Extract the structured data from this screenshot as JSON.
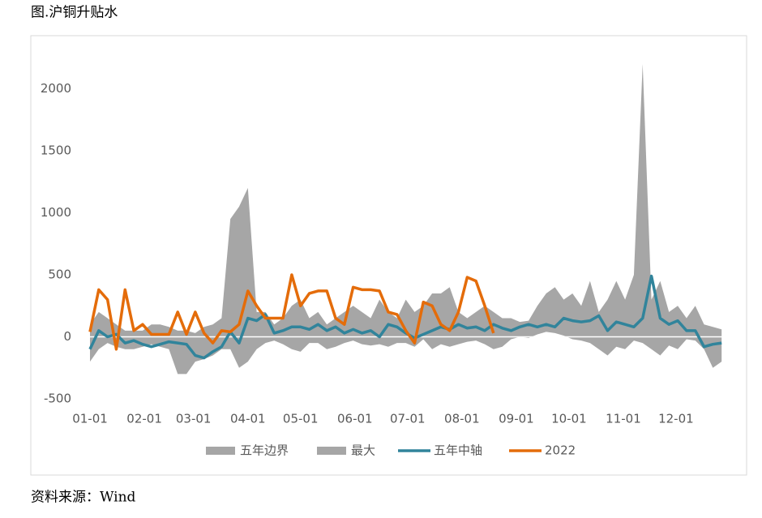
{
  "chart_data": {
    "type": "band-line",
    "title": "图.沪铜升贴水",
    "source": "资料来源：Wind",
    "x": [
      0,
      5,
      10,
      15,
      20,
      25,
      30,
      35,
      40,
      45,
      50,
      55,
      60,
      65,
      70,
      75,
      80,
      85,
      90,
      95,
      100,
      105,
      110,
      115,
      120,
      125,
      130,
      135,
      140,
      145,
      150,
      155,
      160,
      165,
      170,
      175,
      180,
      185,
      190,
      195,
      200,
      205,
      210,
      215,
      220,
      225,
      230,
      235,
      240,
      245,
      250,
      255,
      260,
      265,
      270,
      275,
      280,
      285,
      290,
      295,
      300,
      305,
      310,
      315,
      320,
      325,
      330,
      335,
      340,
      345,
      350,
      355,
      360
    ],
    "xlim": [
      0,
      365
    ],
    "xticks": [
      {
        "value": 0,
        "label": "01-01"
      },
      {
        "value": 31,
        "label": "02-01"
      },
      {
        "value": 59,
        "label": "03-01"
      },
      {
        "value": 90,
        "label": "04-01"
      },
      {
        "value": 120,
        "label": "05-01"
      },
      {
        "value": 151,
        "label": "06-01"
      },
      {
        "value": 181,
        "label": "07-01"
      },
      {
        "value": 212,
        "label": "08-01"
      },
      {
        "value": 243,
        "label": "09-01"
      },
      {
        "value": 273,
        "label": "10-01"
      },
      {
        "value": 304,
        "label": "11-01"
      },
      {
        "value": 334,
        "label": "12-01"
      }
    ],
    "ylim": [
      -500,
      2200
    ],
    "yticks": [
      -500,
      0,
      500,
      1000,
      1500,
      2000
    ],
    "series": [
      {
        "name": "五年边界",
        "color": "#a6a6a6",
        "values": [
          -200,
          -100,
          -50,
          -80,
          -100,
          -100,
          -80,
          -60,
          -80,
          -100,
          -300,
          -300,
          -200,
          -180,
          -150,
          -100,
          -100,
          -250,
          -200,
          -100,
          -50,
          -30,
          -60,
          -100,
          -120,
          -50,
          -50,
          -100,
          -80,
          -50,
          -30,
          -60,
          -70,
          -60,
          -80,
          -50,
          -50,
          -80,
          -20,
          -100,
          -60,
          -80,
          -60,
          -40,
          -30,
          -60,
          -100,
          -80,
          -20,
          0,
          -10,
          20,
          40,
          30,
          10,
          -20,
          -30,
          -50,
          -100,
          -150,
          -80,
          -100,
          -30,
          -50,
          -100,
          -150,
          -70,
          -100,
          -20,
          -30,
          -100,
          -250,
          -200
        ]
      },
      {
        "name": "最大",
        "color": "#a6a6a6",
        "values": [
          100,
          200,
          150,
          100,
          50,
          50,
          50,
          100,
          100,
          80,
          50,
          50,
          30,
          80,
          100,
          150,
          950,
          1050,
          1200,
          200,
          200,
          100,
          150,
          250,
          300,
          150,
          200,
          100,
          150,
          200,
          250,
          200,
          150,
          300,
          200,
          150,
          300,
          200,
          250,
          350,
          350,
          400,
          200,
          150,
          200,
          250,
          200,
          150,
          150,
          120,
          130,
          250,
          350,
          400,
          300,
          350,
          250,
          450,
          200,
          300,
          450,
          300,
          500,
          2200,
          300,
          450,
          200,
          250,
          150,
          250,
          100,
          80,
          60
        ]
      },
      {
        "name": "五年中轴",
        "color": "#31849b",
        "values": [
          -100,
          50,
          0,
          20,
          -50,
          -30,
          -60,
          -80,
          -60,
          -40,
          -50,
          -60,
          -150,
          -170,
          -120,
          -80,
          40,
          -50,
          150,
          130,
          180,
          30,
          50,
          80,
          80,
          60,
          100,
          50,
          80,
          30,
          60,
          30,
          50,
          0,
          100,
          80,
          30,
          -10,
          20,
          50,
          80,
          60,
          100,
          70,
          80,
          50,
          100,
          70,
          50,
          80,
          100,
          80,
          100,
          80,
          150,
          130,
          120,
          130,
          170,
          50,
          120,
          100,
          80,
          150,
          490,
          150,
          100,
          130,
          50,
          50,
          -80,
          -60,
          -50
        ]
      },
      {
        "name": "2022",
        "color": "#e46c0a",
        "values": [
          40,
          380,
          300,
          -100,
          380,
          50,
          100,
          20,
          20,
          20,
          200,
          20,
          200,
          30,
          -50,
          50,
          40,
          100,
          370,
          250,
          150,
          150,
          150,
          500,
          250,
          350,
          370,
          370,
          150,
          100,
          400,
          380,
          380,
          370,
          200,
          180,
          50,
          -50,
          280,
          250,
          100,
          50,
          200,
          480,
          450,
          250,
          30,
          null,
          null,
          null,
          null,
          null,
          null,
          null,
          null,
          null,
          null,
          null,
          null,
          null,
          null,
          null,
          null,
          null,
          null,
          null,
          null,
          null,
          null,
          null,
          null,
          null,
          null
        ]
      }
    ]
  }
}
